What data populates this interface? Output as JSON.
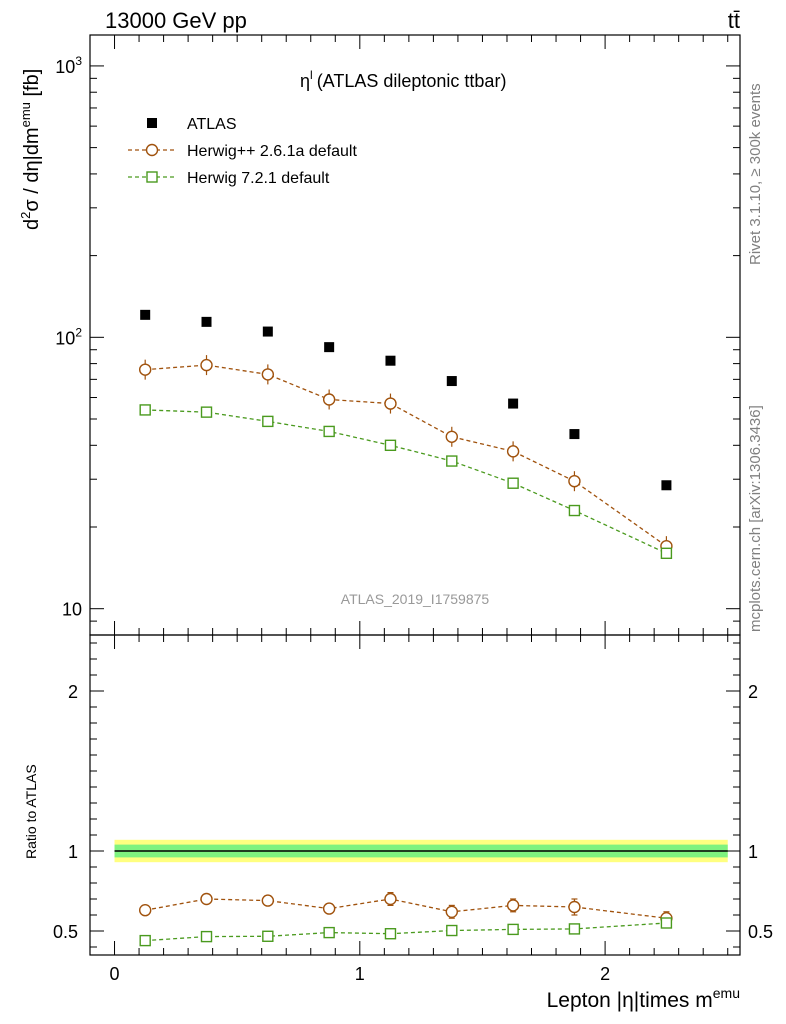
{
  "header": {
    "energy_label": "13000 GeV pp",
    "process_label": "tt̄"
  },
  "side_text": {
    "rivet": "Rivet 3.1.10, ≥ 300k events",
    "mcplots": "mcplots.cern.ch [arXiv:1306.3436]"
  },
  "colors": {
    "atlas": "#000000",
    "herwig_261": "#a0520d",
    "herwig_721": "#4a9a1e",
    "band_inner": "#7ff27f",
    "band_outer": "#ffff80"
  },
  "chart_data": [
    {
      "type": "scatter",
      "title_main": "η",
      "title_sup": "l",
      "title_rest": "(ATLAS dileptonic ttbar)",
      "watermark": "ATLAS_2019_I1759875",
      "ylabel_parts": [
        "d",
        "2",
        "σ / dη|dm",
        "emu",
        " [fb]"
      ],
      "yscale": "log",
      "ylim": [
        8,
        1300
      ],
      "xlim": [
        -0.1,
        2.55
      ],
      "y_tick_labels": [
        {
          "value": 10,
          "base": "10",
          "exp": ""
        },
        {
          "value": 100,
          "base": "10",
          "exp": "2"
        },
        {
          "value": 1000,
          "base": "10",
          "exp": "3"
        }
      ],
      "legend_position": "top-left",
      "series": [
        {
          "name": "ATLAS",
          "marker": "filled-square",
          "x": [
            0.125,
            0.375,
            0.625,
            0.875,
            1.125,
            1.375,
            1.625,
            1.875,
            2.25
          ],
          "y": [
            121,
            114,
            105,
            92,
            82,
            69,
            57,
            44,
            28.5
          ]
        },
        {
          "name": "Herwig++ 2.6.1a default",
          "marker": "open-circle",
          "x": [
            0.125,
            0.375,
            0.625,
            0.875,
            1.125,
            1.375,
            1.625,
            1.875,
            2.25
          ],
          "y": [
            76,
            79,
            73,
            59,
            57,
            43,
            38,
            29.5,
            17
          ]
        },
        {
          "name": "Herwig 7.2.1 default",
          "marker": "open-square",
          "x": [
            0.125,
            0.375,
            0.625,
            0.875,
            1.125,
            1.375,
            1.625,
            1.875,
            2.25
          ],
          "y": [
            54,
            53,
            49,
            45,
            40,
            35,
            29,
            23,
            16
          ]
        }
      ]
    },
    {
      "type": "scatter",
      "ylabel": "Ratio to ATLAS",
      "xlabel_main": "Lepton |η|times m",
      "xlabel_sup": "emu",
      "ylim": [
        0.35,
        2.35
      ],
      "xlim": [
        -0.1,
        2.55
      ],
      "x_tick_labels": [
        "0",
        "1",
        "2"
      ],
      "x_tick_values": [
        0,
        1,
        2
      ],
      "y_tick_labels": [
        "0.5",
        "1",
        "2"
      ],
      "y_tick_values": [
        0.5,
        1,
        2
      ],
      "reference_band": {
        "inner": 0.04,
        "outer": 0.07,
        "center": 1
      },
      "series": [
        {
          "name": "Herwig++ 2.6.1a default",
          "x": [
            0.125,
            0.375,
            0.625,
            0.875,
            1.125,
            1.375,
            1.625,
            1.875,
            2.25
          ],
          "y": [
            0.63,
            0.7,
            0.69,
            0.64,
            0.7,
            0.62,
            0.66,
            0.65,
            0.58
          ],
          "err": [
            0.03,
            0.03,
            0.03,
            0.03,
            0.04,
            0.04,
            0.04,
            0.05,
            0.04
          ]
        },
        {
          "name": "Herwig 7.2.1 default",
          "x": [
            0.125,
            0.375,
            0.625,
            0.875,
            1.125,
            1.375,
            1.625,
            1.875,
            2.25
          ],
          "y": [
            0.44,
            0.465,
            0.467,
            0.49,
            0.483,
            0.503,
            0.51,
            0.513,
            0.55
          ],
          "err": [
            0.01,
            0.01,
            0.01,
            0.01,
            0.01,
            0.01,
            0.01,
            0.01,
            0.015
          ]
        }
      ]
    }
  ]
}
